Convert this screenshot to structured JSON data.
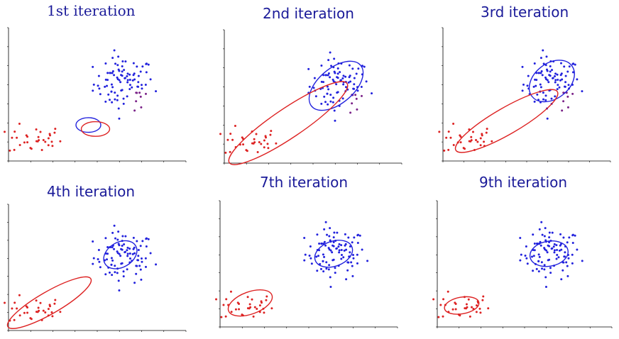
{
  "colors": {
    "cluster_a": "#2222dd",
    "cluster_b": "#dd2222",
    "mixed": "#7a2288",
    "axis": "#000000",
    "title": "#1a1a99"
  },
  "chart_data": [
    {
      "type": "scatter",
      "title": "1st iteration",
      "grid": false,
      "ellipses": [
        {
          "cluster": "cluster_a",
          "cx": 0.45,
          "cy": 0.27,
          "rx": 0.07,
          "ry": 0.05,
          "angle": 0
        },
        {
          "cluster": "cluster_b",
          "cx": 0.49,
          "cy": 0.24,
          "rx": 0.08,
          "ry": 0.05,
          "angle": 0
        }
      ],
      "assignment": "early"
    },
    {
      "type": "scatter",
      "title": "2nd iteration",
      "grid": false,
      "ellipses": [
        {
          "cluster": "cluster_a",
          "cx": 0.63,
          "cy": 0.58,
          "rx": 0.18,
          "ry": 0.12,
          "angle": 40
        },
        {
          "cluster": "cluster_b",
          "cx": 0.36,
          "cy": 0.3,
          "rx": 0.4,
          "ry": 0.1,
          "angle": 34
        }
      ],
      "assignment": "mid"
    },
    {
      "type": "scatter",
      "title": "3rd iteration",
      "grid": false,
      "ellipses": [
        {
          "cluster": "cluster_a",
          "cx": 0.65,
          "cy": 0.6,
          "rx": 0.15,
          "ry": 0.12,
          "angle": 38
        },
        {
          "cluster": "cluster_b",
          "cx": 0.38,
          "cy": 0.3,
          "rx": 0.35,
          "ry": 0.09,
          "angle": 30
        }
      ],
      "assignment": "mid"
    },
    {
      "type": "scatter",
      "title": "4th iteration",
      "grid": false,
      "ellipses": [
        {
          "cluster": "cluster_a",
          "cx": 0.63,
          "cy": 0.6,
          "rx": 0.1,
          "ry": 0.09,
          "angle": 30
        },
        {
          "cluster": "cluster_b",
          "cx": 0.23,
          "cy": 0.22,
          "rx": 0.27,
          "ry": 0.08,
          "angle": 30
        }
      ],
      "assignment": "late"
    },
    {
      "type": "scatter",
      "title": "7th iteration",
      "grid": false,
      "ellipses": [
        {
          "cluster": "cluster_a",
          "cx": 0.64,
          "cy": 0.58,
          "rx": 0.11,
          "ry": 0.09,
          "angle": 20
        },
        {
          "cluster": "cluster_b",
          "cx": 0.17,
          "cy": 0.19,
          "rx": 0.13,
          "ry": 0.08,
          "angle": 20
        }
      ],
      "assignment": "final"
    },
    {
      "type": "scatter",
      "title": "9th iteration",
      "grid": false,
      "ellipses": [
        {
          "cluster": "cluster_a",
          "cx": 0.64,
          "cy": 0.58,
          "rx": 0.11,
          "ry": 0.09,
          "angle": 10
        },
        {
          "cluster": "cluster_b",
          "cx": 0.14,
          "cy": 0.17,
          "rx": 0.1,
          "ry": 0.06,
          "angle": 10
        }
      ],
      "assignment": "final"
    }
  ]
}
